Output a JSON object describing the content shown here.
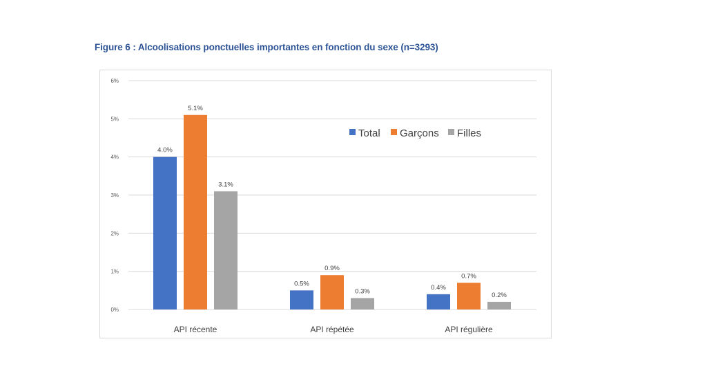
{
  "figure": {
    "title": "Figure 6 : Alcoolisations ponctuelles importantes en fonction du sexe (n=3293)"
  },
  "chart_data": {
    "type": "bar",
    "title": "Figure 6 : Alcoolisations ponctuelles importantes en fonction du sexe (n=3293)",
    "categories": [
      "API récente",
      "API répétée",
      "API régulière"
    ],
    "series": [
      {
        "name": "Total",
        "values": [
          4.0,
          0.5,
          0.4
        ],
        "labels": [
          "4.0%",
          "0.5%",
          "0.4%"
        ],
        "color": "#4472c4"
      },
      {
        "name": "Garçons",
        "values": [
          5.1,
          0.9,
          0.7
        ],
        "labels": [
          "5.1%",
          "0.9%",
          "0.7%"
        ],
        "color": "#ed7d31"
      },
      {
        "name": "Filles",
        "values": [
          3.1,
          0.3,
          0.2
        ],
        "labels": [
          "3.1%",
          "0.3%",
          "0.2%"
        ],
        "color": "#a5a5a5"
      }
    ],
    "ylim": [
      0,
      6
    ],
    "yticks": [
      "0%",
      "1%",
      "2%",
      "3%",
      "4%",
      "5%",
      "6%"
    ],
    "grid": true,
    "legend": "top-right",
    "gridline_color": "#d9d9d9"
  }
}
